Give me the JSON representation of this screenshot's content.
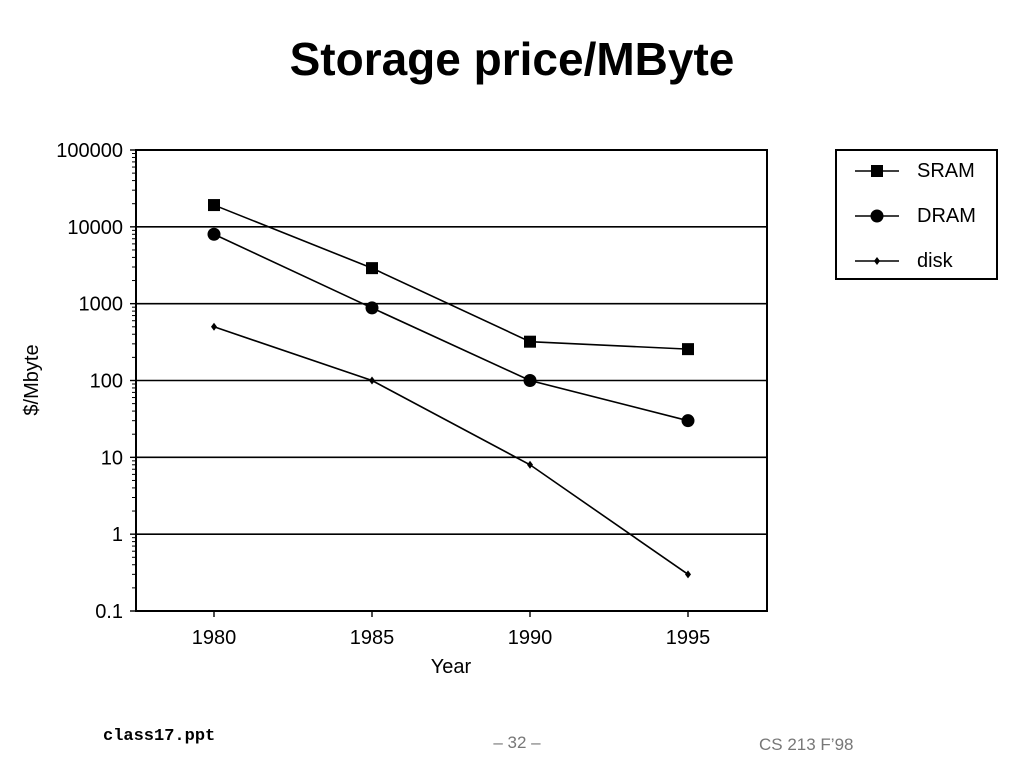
{
  "slide": {
    "title": "Storage price/MByte",
    "footer_left": "class17.ppt",
    "footer_center": "– 32 –",
    "footer_right": "CS 213 F’98"
  },
  "chart_data": {
    "type": "line",
    "title": "",
    "xlabel": "Year",
    "ylabel": "$/Mbyte",
    "y_scale": "log",
    "ylim": [
      0.1,
      100000
    ],
    "y_ticks": [
      "0.1",
      "1",
      "10",
      "100",
      "1000",
      "10000",
      "100000"
    ],
    "y_tick_values": [
      0.1,
      1,
      10,
      100,
      1000,
      10000,
      100000
    ],
    "categories": [
      "1980",
      "1985",
      "1990",
      "1995"
    ],
    "grid": "horizontal",
    "legend_position": "right",
    "series": [
      {
        "name": "SRAM",
        "marker": "square",
        "values": [
          19200,
          2900,
          320,
          256
        ]
      },
      {
        "name": "DRAM",
        "marker": "circle",
        "values": [
          8000,
          880,
          100,
          30
        ]
      },
      {
        "name": "disk",
        "marker": "diamond",
        "values": [
          500,
          100,
          8,
          0.3
        ]
      }
    ]
  }
}
